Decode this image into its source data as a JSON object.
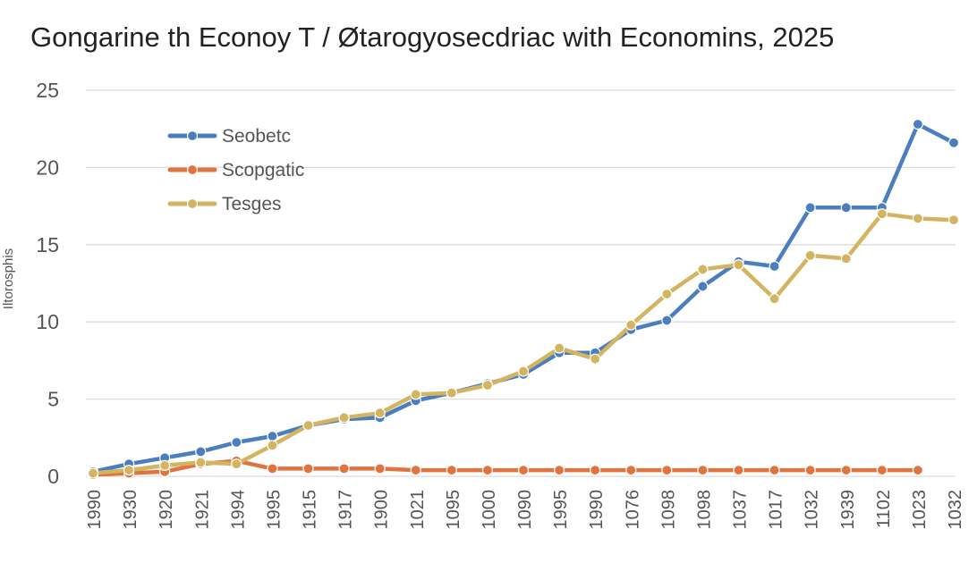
{
  "chart_data": {
    "type": "line",
    "title": "Gongarine th Econoy T / Øtarogyosecdriac with Economins, 2025",
    "xlabel": "",
    "ylabel": "Iltorosphis",
    "ylim": [
      0,
      25
    ],
    "yticks": [
      0,
      5,
      10,
      15,
      20,
      25
    ],
    "grid": true,
    "legend_position": "top-left",
    "categories": [
      "1990",
      "1930",
      "1920",
      "1921",
      "1994",
      "1995",
      "1915",
      "1917",
      "1900",
      "1021",
      "1095",
      "1000",
      "1090",
      "1995",
      "1990",
      "1076",
      "1098",
      "1098",
      "1037",
      "1017",
      "1032",
      "1939",
      "1102",
      "1023",
      "1032"
    ],
    "series": [
      {
        "name": "Seobetc",
        "color": "#4a7ebf",
        "values": [
          0.3,
          0.8,
          1.2,
          1.6,
          2.2,
          2.6,
          3.3,
          3.7,
          3.8,
          4.9,
          5.4,
          6.0,
          6.6,
          8.0,
          8.0,
          9.5,
          10.1,
          12.3,
          13.9,
          13.6,
          17.4,
          17.4,
          17.4,
          22.8,
          21.6
        ]
      },
      {
        "name": "Scopgatic",
        "color": "#e0733e",
        "values": [
          0.1,
          0.2,
          0.3,
          0.8,
          1.0,
          0.5,
          0.5,
          0.5,
          0.5,
          0.4,
          0.4,
          0.4,
          0.4,
          0.4,
          0.4,
          0.4,
          0.4,
          0.4,
          0.4,
          0.4,
          0.4,
          0.4,
          0.4,
          0.4,
          null
        ]
      },
      {
        "name": "Tesges",
        "color": "#d3b460",
        "values": [
          0.2,
          0.4,
          0.7,
          0.9,
          0.8,
          2.0,
          3.3,
          3.8,
          4.1,
          5.3,
          5.4,
          5.9,
          6.8,
          8.3,
          7.6,
          9.8,
          11.8,
          13.4,
          13.7,
          11.5,
          14.3,
          14.1,
          17.0,
          16.7,
          16.6
        ]
      }
    ]
  }
}
